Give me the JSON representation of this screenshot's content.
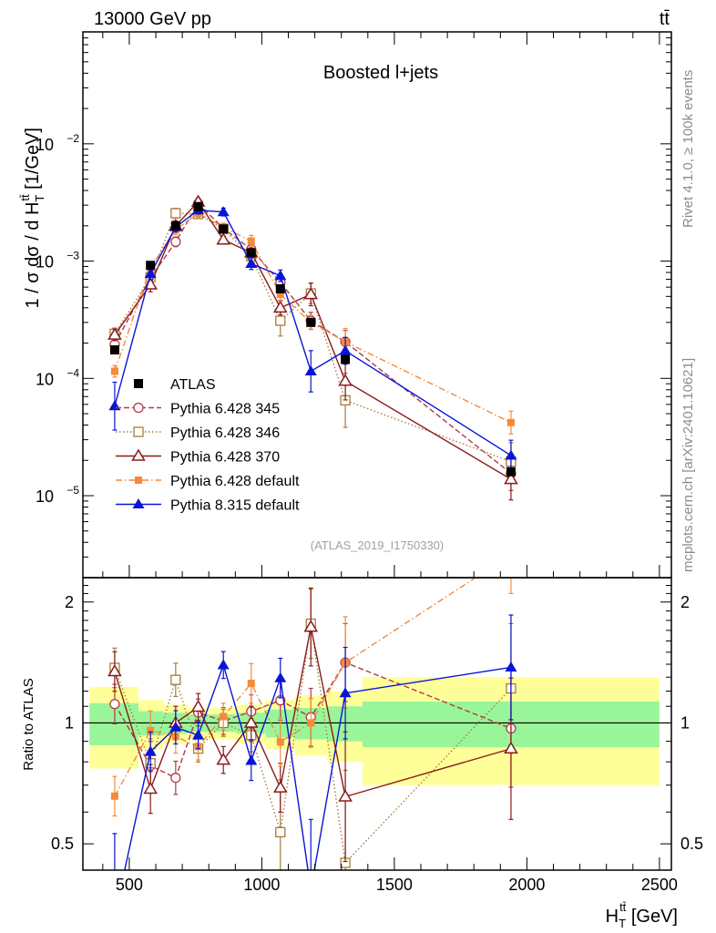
{
  "header": {
    "beam": "13000 GeV pp",
    "process": "tt̄",
    "rivet_note": "Rivet 4.1.0, ≥ 100k events",
    "site_note": "mcplots.cern.ch [arXiv:2401.10621]",
    "analysis_id": "(ATLAS_2019_I1750330)"
  },
  "chart_data": [
    {
      "type": "scatter",
      "panel": "main",
      "title": "Boosted l+jets",
      "ylabel_parts": [
        "1 / σ dσ / d H",
        "T",
        "tt̄",
        " [1/GeV]"
      ],
      "yscale": "log",
      "ylim": [
        2e-06,
        0.09
      ],
      "yticks": [
        {
          "value": 1e-05,
          "label": "10",
          "exp": "−5"
        },
        {
          "value": 0.0001,
          "label": "10",
          "exp": "−4"
        },
        {
          "value": 0.001,
          "label": "10",
          "exp": "−3"
        },
        {
          "value": 0.01,
          "label": "10",
          "exp": "−2"
        }
      ],
      "xlim": [
        325,
        2545
      ],
      "x": [
        445,
        580,
        675,
        760,
        855,
        960,
        1070,
        1185,
        1315,
        1940
      ],
      "data": {
        "name": "ATLAS",
        "values": [
          0.000175,
          0.00092,
          0.002,
          0.00292,
          0.00188,
          0.00118,
          0.00058,
          0.0003,
          0.000145,
          1.6e-05
        ],
        "band_edges": [
          350,
          535,
          630,
          720,
          800,
          905,
          1015,
          1125,
          1245,
          1380,
          2500
        ],
        "band_inner": [
          0.12,
          0.07,
          0.06,
          0.05,
          0.05,
          0.06,
          0.08,
          0.09,
          0.1,
          0.13
        ],
        "band_outer": [
          0.23,
          0.14,
          0.11,
          0.09,
          0.09,
          0.11,
          0.14,
          0.17,
          0.2,
          0.3
        ]
      },
      "series": [
        {
          "name": "Pythia 6.428 345",
          "color": "#b03a48",
          "marker": "circle-open",
          "dash": "6,3",
          "values": [
            0.000195,
            0.00072,
            0.00146,
            0.0031,
            0.0019,
            0.00126,
            0.00066,
            0.00031,
            0.000205,
            1.55e-05
          ],
          "err": [
            0.12,
            0.15,
            0.1,
            0.08,
            0.08,
            0.1,
            0.12,
            0.18,
            0.25,
            0.4
          ]
        },
        {
          "name": "Pythia 6.428 346",
          "color": "#a67c3b",
          "marker": "square-open",
          "dash": "1.5,2.5",
          "values": [
            0.00024,
            0.00073,
            0.00256,
            0.00252,
            0.00188,
            0.0011,
            0.00031,
            0.00053,
            6.5e-05,
            1.95e-05
          ],
          "err": [
            0.12,
            0.15,
            0.1,
            0.08,
            0.08,
            0.1,
            0.35,
            0.22,
            0.7,
            0.45
          ]
        },
        {
          "name": "Pythia 6.428 370",
          "color": "#8b1a1a",
          "marker": "triangle-open",
          "dash": "",
          "values": [
            0.000235,
            0.00063,
            0.002,
            0.0032,
            0.00152,
            0.00118,
            0.0004,
            0.00052,
            9.5e-05,
            1.38e-05
          ],
          "err": [
            0.12,
            0.15,
            0.1,
            0.08,
            0.08,
            0.1,
            0.15,
            0.25,
            0.45,
            0.5
          ]
        },
        {
          "name": "Pythia 6.428 default",
          "color": "#f58a3a",
          "marker": "square-filled",
          "dash": "7,3,1.5,3",
          "values": [
            0.000115,
            0.00088,
            0.00185,
            0.00255,
            0.00195,
            0.00148,
            0.00052,
            0.0003,
            0.000205,
            4.2e-05
          ],
          "err": [
            0.12,
            0.12,
            0.1,
            0.08,
            0.08,
            0.12,
            0.15,
            0.15,
            0.3,
            0.25
          ]
        },
        {
          "name": "Pythia 8.315 default",
          "color": "#0a14d6",
          "marker": "triangle-filled",
          "dash": "",
          "values": [
            5.8e-05,
            0.00078,
            0.00195,
            0.00272,
            0.00262,
            0.00095,
            0.00075,
            0.000115,
            0.000172,
            2.2e-05
          ],
          "err": [
            0.6,
            0.12,
            0.1,
            0.08,
            0.08,
            0.12,
            0.12,
            0.5,
            0.3,
            0.35
          ]
        }
      ]
    },
    {
      "type": "scatter",
      "panel": "ratio",
      "ylabel": "Ratio to ATLAS",
      "ylim": [
        0.43,
        2.3
      ],
      "yticks": [
        {
          "value": 0.5,
          "label": "0.5"
        },
        {
          "value": 1,
          "label": "1"
        },
        {
          "value": 2,
          "label": "2"
        }
      ],
      "xlim": [
        325,
        2545
      ],
      "xticks": [
        500,
        1000,
        1500,
        2000,
        2500
      ],
      "xtick_labels": [
        "500",
        "1000",
        "1500",
        "2000",
        "2500"
      ],
      "xlabel_parts": [
        "H",
        "T",
        "tt̄",
        " [GeV]"
      ]
    }
  ]
}
